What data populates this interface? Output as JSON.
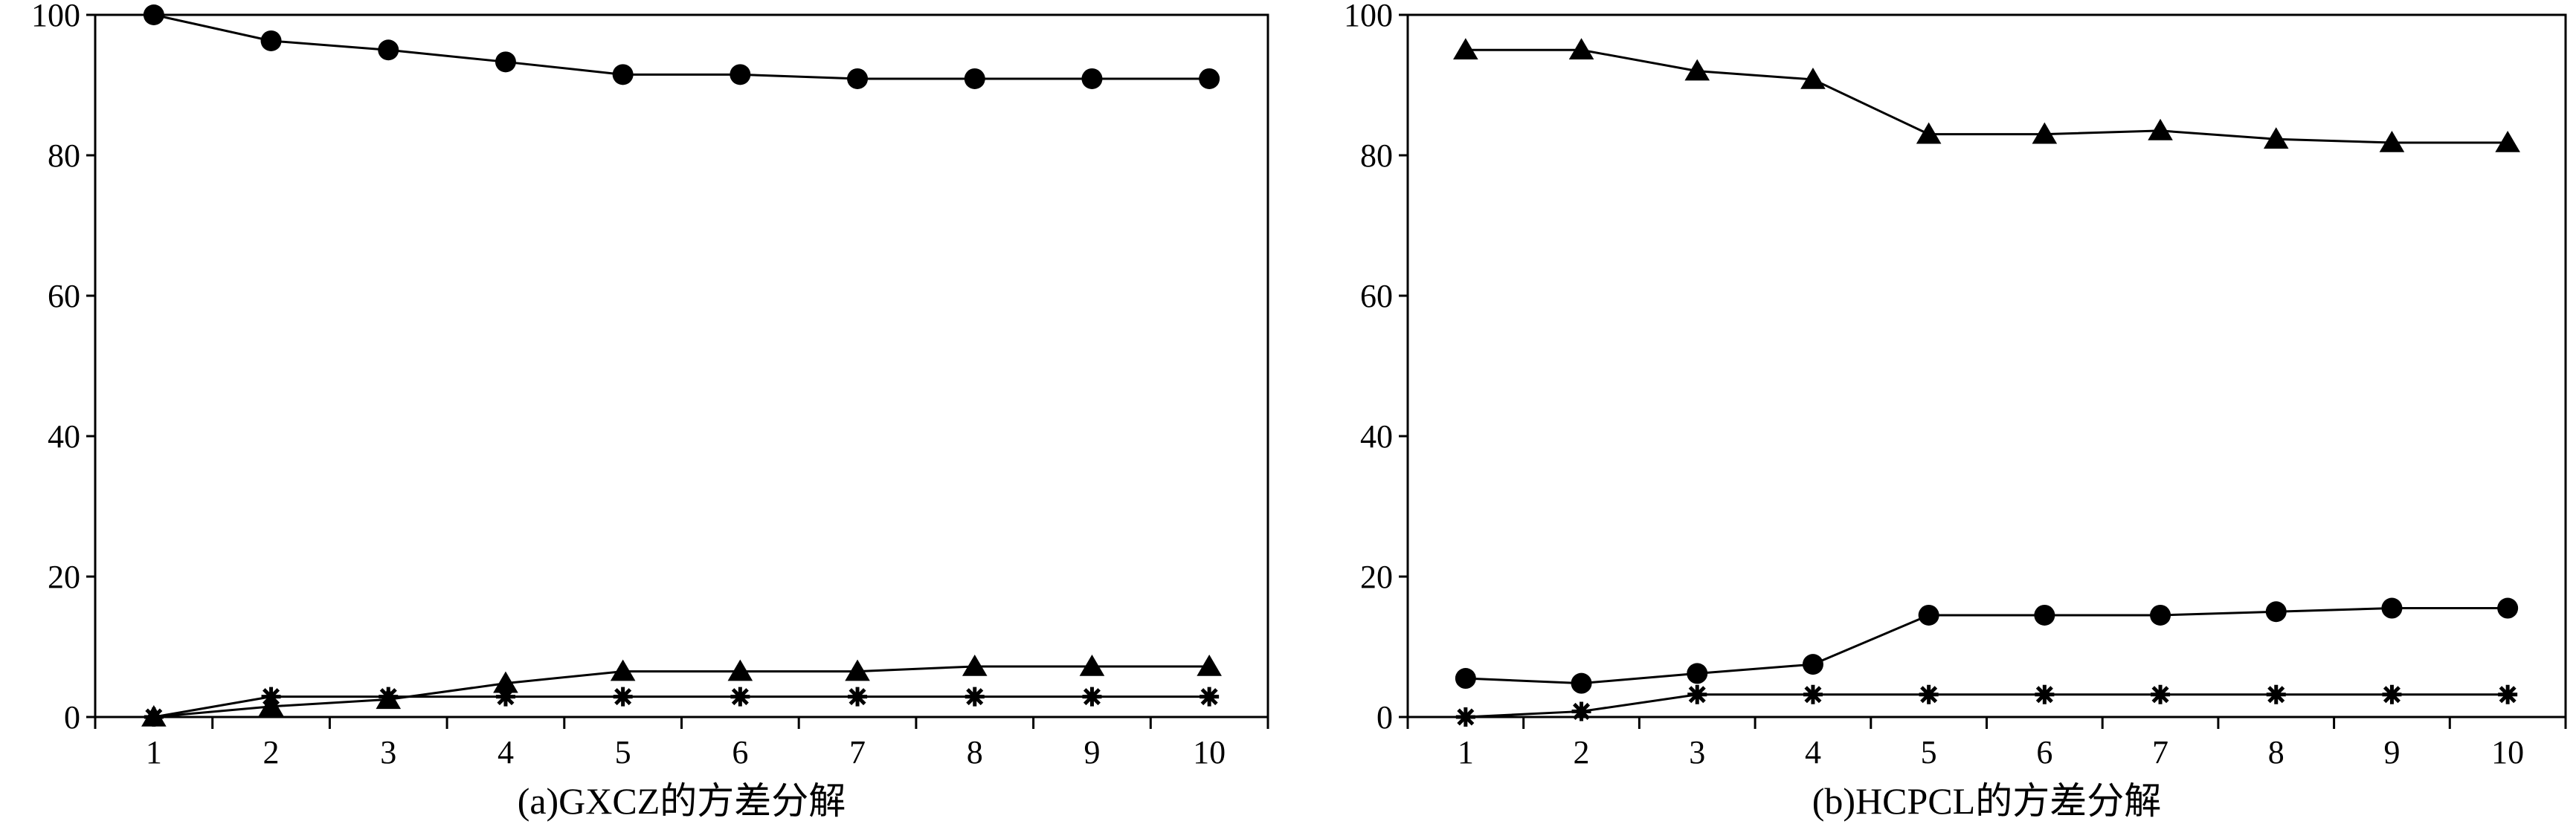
{
  "chart_data": [
    {
      "type": "line",
      "caption": "(a)GXCZ的方差分解",
      "x": [
        1,
        2,
        3,
        4,
        5,
        6,
        7,
        8,
        9,
        10
      ],
      "xlim": [
        0.5,
        10.5
      ],
      "ylim": [
        0,
        100
      ],
      "yticks": [
        0,
        20,
        40,
        60,
        80,
        100
      ],
      "grid": false,
      "series": [
        {
          "marker": "circle",
          "values": [
            100,
            96.3,
            95.0,
            93.3,
            91.5,
            91.5,
            90.9,
            90.9,
            90.9,
            90.9
          ]
        },
        {
          "marker": "triangle",
          "values": [
            0,
            1.5,
            2.5,
            4.8,
            6.5,
            6.5,
            6.5,
            7.2,
            7.2,
            7.2
          ]
        },
        {
          "marker": "star",
          "values": [
            0,
            2.9,
            2.9,
            2.9,
            2.9,
            2.9,
            2.9,
            2.9,
            2.9,
            2.9
          ]
        }
      ]
    },
    {
      "type": "line",
      "caption": "(b)HCPCL的方差分解",
      "x": [
        1,
        2,
        3,
        4,
        5,
        6,
        7,
        8,
        9,
        10
      ],
      "xlim": [
        0.5,
        10.5
      ],
      "ylim": [
        0,
        100
      ],
      "yticks": [
        0,
        20,
        40,
        60,
        80,
        100
      ],
      "grid": false,
      "series": [
        {
          "marker": "triangle",
          "values": [
            95.0,
            95.0,
            92.0,
            90.8,
            83.0,
            83.0,
            83.5,
            82.3,
            81.8,
            81.8
          ]
        },
        {
          "marker": "circle",
          "values": [
            5.5,
            4.8,
            6.2,
            7.5,
            14.5,
            14.5,
            14.5,
            15.0,
            15.5,
            15.5
          ]
        },
        {
          "marker": "star",
          "values": [
            0,
            0.8,
            3.2,
            3.2,
            3.2,
            3.2,
            3.2,
            3.2,
            3.2,
            3.2
          ]
        }
      ]
    }
  ]
}
